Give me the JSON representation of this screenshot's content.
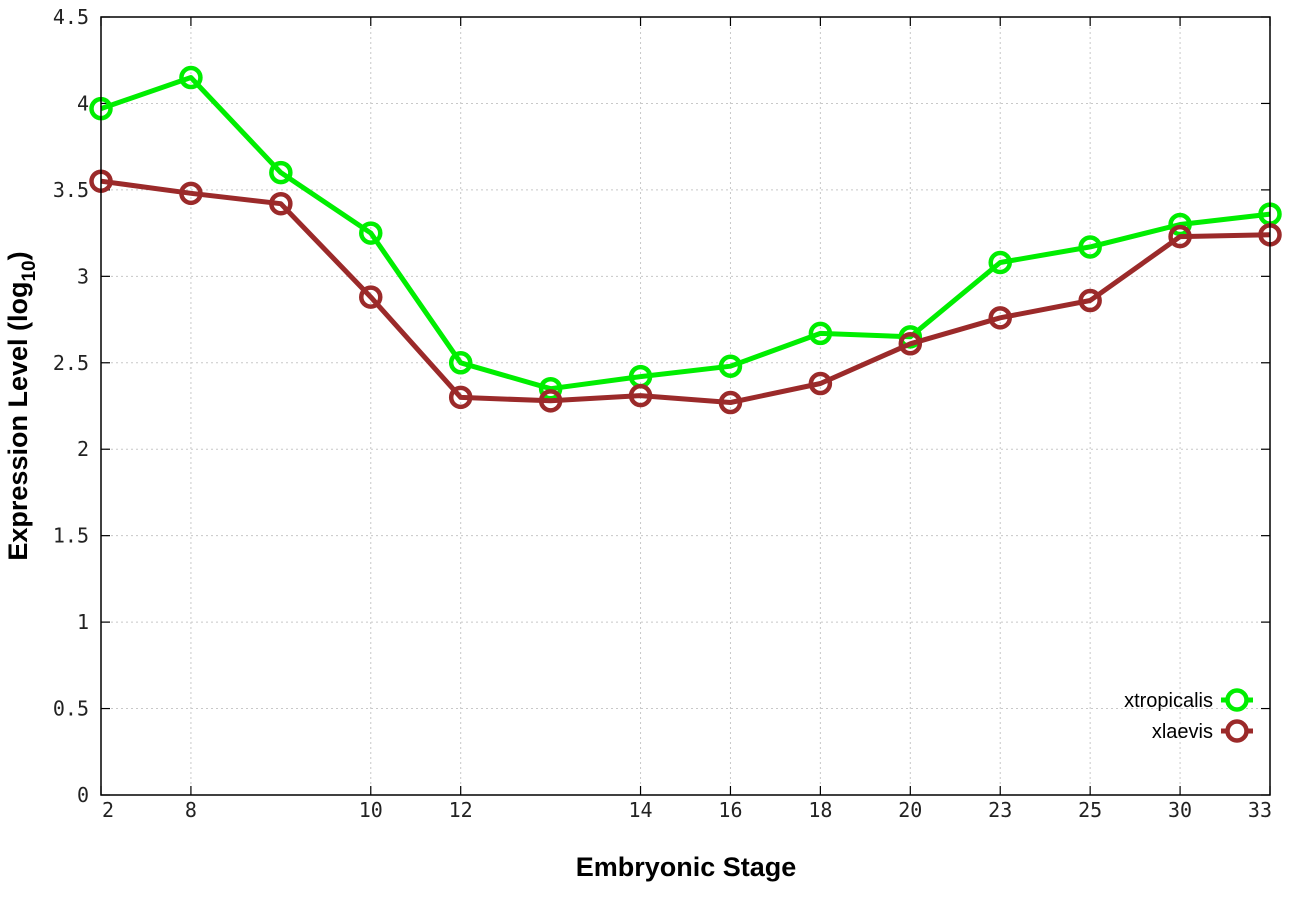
{
  "chart_data": {
    "type": "line",
    "xlabel": "Embryonic Stage",
    "ylabel_main": "Expression Level (log",
    "ylabel_sub": "10",
    "ylabel_close": ")",
    "xlim": [
      2,
      33
    ],
    "ylim": [
      0,
      4.5
    ],
    "x_ticks": [
      "2",
      "8",
      "10",
      "12",
      "14",
      "16",
      "18",
      "20",
      "23",
      "25",
      "30",
      "33"
    ],
    "y_ticks": [
      "0",
      "0.5",
      "1",
      "1.5",
      "2",
      "2.5",
      "3",
      "3.5",
      "4",
      "4.5"
    ],
    "x_positions": [
      2,
      8,
      9,
      10,
      12,
      13,
      14,
      16,
      18,
      20,
      23,
      25,
      30,
      33
    ],
    "grid": true,
    "legend_position": "bottom-right",
    "series": [
      {
        "name": "xtropicalis",
        "color": "#00ee00",
        "x": [
          2,
          8,
          9,
          10,
          12,
          13,
          14,
          16,
          18,
          20,
          23,
          25,
          30,
          33
        ],
        "values": [
          3.97,
          4.15,
          3.6,
          3.25,
          2.5,
          2.35,
          2.42,
          2.48,
          2.67,
          2.65,
          3.08,
          3.17,
          3.3,
          3.36
        ]
      },
      {
        "name": "xlaevis",
        "color": "#9b2a2a",
        "x": [
          2,
          8,
          9,
          10,
          12,
          13,
          14,
          16,
          18,
          20,
          23,
          25,
          30,
          33
        ],
        "values": [
          3.55,
          3.48,
          3.42,
          2.88,
          2.3,
          2.28,
          2.31,
          2.27,
          2.38,
          2.61,
          2.76,
          2.86,
          3.23,
          3.24
        ]
      }
    ]
  }
}
